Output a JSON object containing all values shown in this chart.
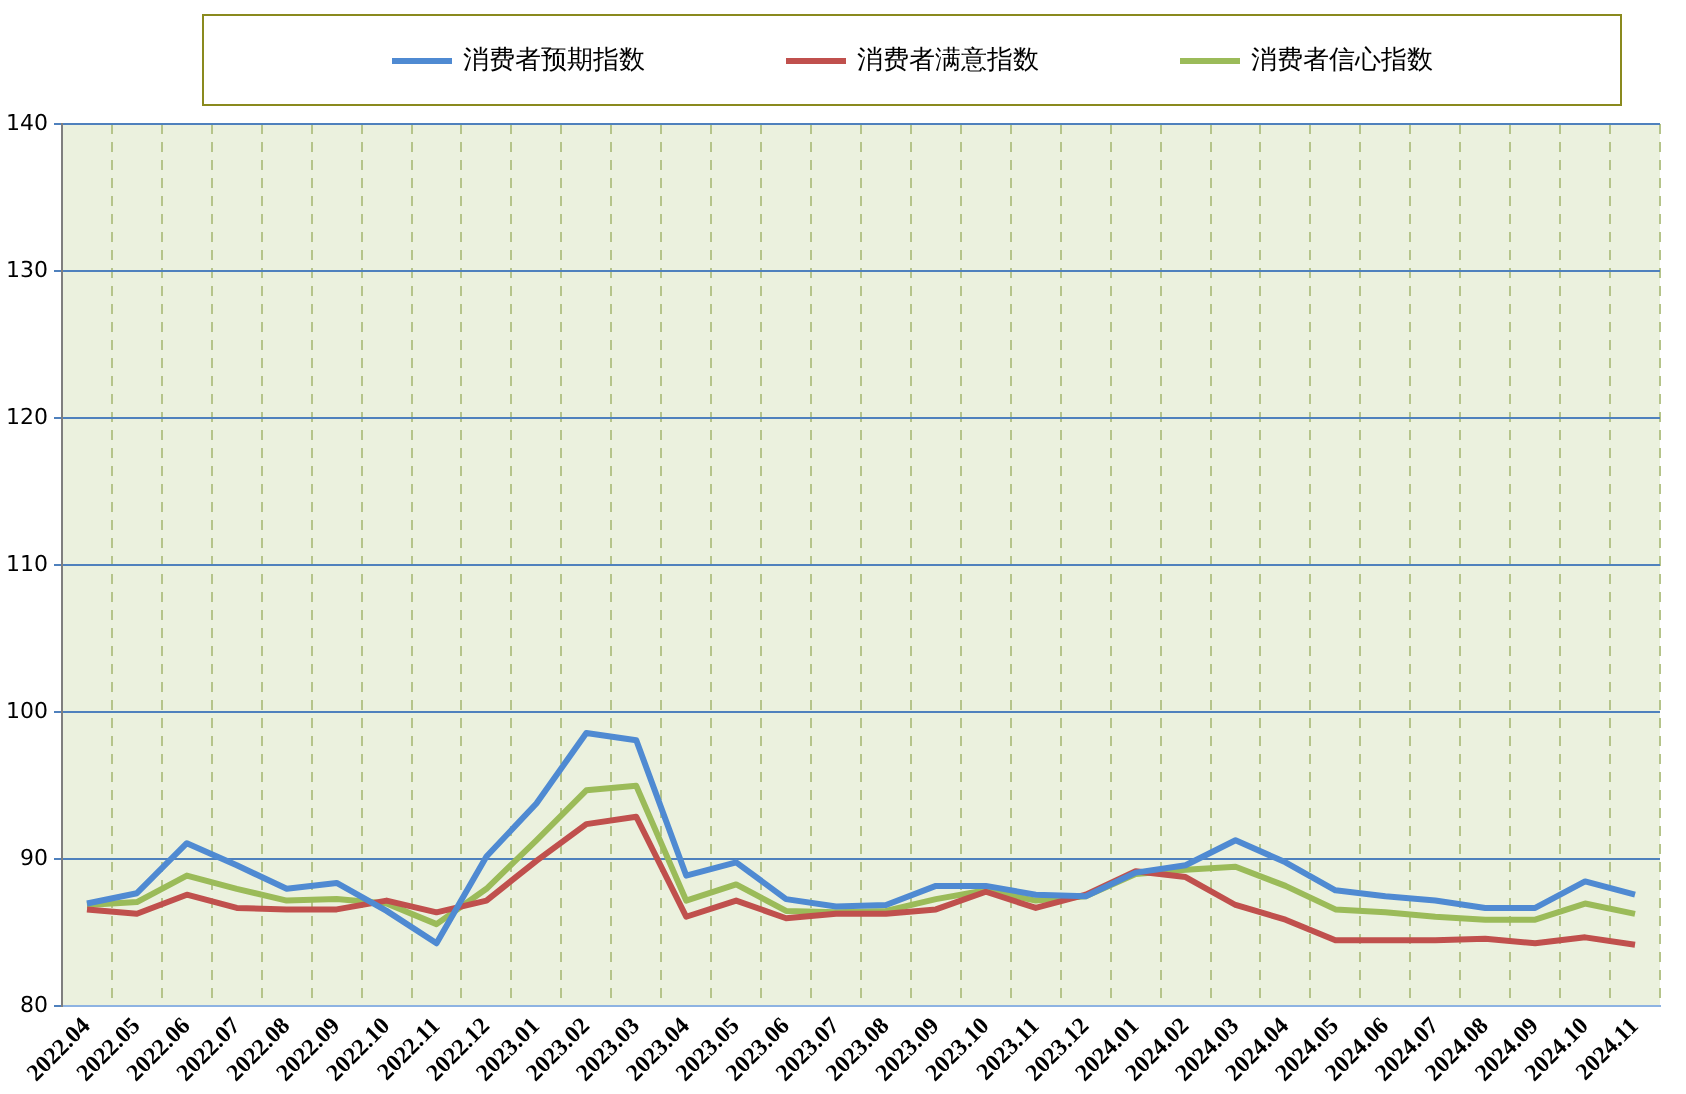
{
  "chart_data": {
    "type": "line",
    "categories": [
      "2022.04",
      "2022.05",
      "2022.06",
      "2022.07",
      "2022.08",
      "2022.09",
      "2022.10",
      "2022.11",
      "2022.12",
      "2023.01",
      "2023.02",
      "2023.03",
      "2023.04",
      "2023.05",
      "2023.06",
      "2023.07",
      "2023.08",
      "2023.09",
      "2023.10",
      "2023.11",
      "2023.12",
      "2024.01",
      "2024.02",
      "2024.03",
      "2024.04",
      "2024.05",
      "2024.06",
      "2024.07",
      "2024.08",
      "2024.09",
      "2024.10",
      "2024.11"
    ],
    "series": [
      {
        "name": "消费者预期指数",
        "color": "#4f8ad2",
        "values": [
          87.0,
          87.7,
          91.1,
          89.6,
          88.0,
          88.4,
          86.5,
          84.3,
          90.2,
          93.8,
          98.6,
          98.1,
          88.9,
          89.8,
          87.3,
          86.8,
          86.9,
          88.2,
          88.2,
          87.6,
          87.5,
          89.1,
          89.6,
          91.3,
          89.8,
          87.9,
          87.5,
          87.2,
          86.7,
          86.7,
          88.5,
          87.6
        ]
      },
      {
        "name": "消费者满意指数",
        "color": "#c0504d",
        "values": [
          86.6,
          86.3,
          87.6,
          86.7,
          86.6,
          86.6,
          87.2,
          86.4,
          87.2,
          89.9,
          92.4,
          92.9,
          86.1,
          87.2,
          86.0,
          86.3,
          86.3,
          86.6,
          87.8,
          86.7,
          87.6,
          89.2,
          88.8,
          86.9,
          85.9,
          84.5,
          84.5,
          84.5,
          84.6,
          84.3,
          84.7,
          84.2
        ]
      },
      {
        "name": "消费者信心指数",
        "color": "#9bbb59",
        "values": [
          86.9,
          87.1,
          88.9,
          88.0,
          87.2,
          87.3,
          87.0,
          85.6,
          88.0,
          91.3,
          94.7,
          95.0,
          87.2,
          88.3,
          86.5,
          86.4,
          86.5,
          87.3,
          87.9,
          87.2,
          87.5,
          89.0,
          89.3,
          89.5,
          88.2,
          86.6,
          86.4,
          86.1,
          85.9,
          85.9,
          87.0,
          86.3
        ]
      }
    ],
    "ylim": [
      80,
      140
    ],
    "yticks": [
      80,
      90,
      100,
      110,
      120,
      130,
      140
    ],
    "grid": true,
    "legend": "top",
    "marker": "none",
    "line_style": "solid"
  }
}
